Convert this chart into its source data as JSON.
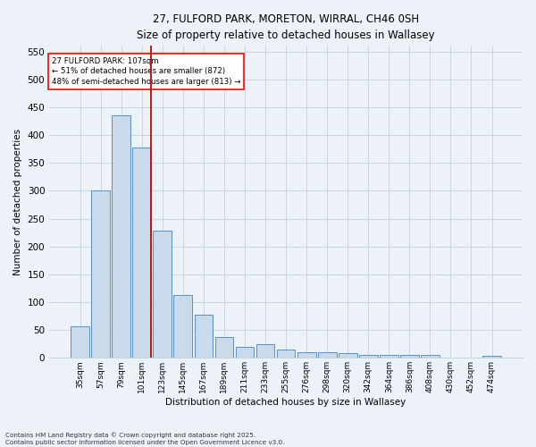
{
  "title_line1": "27, FULFORD PARK, MORETON, WIRRAL, CH46 0SH",
  "title_line2": "Size of property relative to detached houses in Wallasey",
  "xlabel": "Distribution of detached houses by size in Wallasey",
  "ylabel": "Number of detached properties",
  "footnote": "Contains HM Land Registry data © Crown copyright and database right 2025.\nContains public sector information licensed under the Open Government Licence v3.0.",
  "categories": [
    "35sqm",
    "57sqm",
    "79sqm",
    "101sqm",
    "123sqm",
    "145sqm",
    "167sqm",
    "189sqm",
    "211sqm",
    "233sqm",
    "255sqm",
    "276sqm",
    "298sqm",
    "320sqm",
    "342sqm",
    "364sqm",
    "386sqm",
    "408sqm",
    "430sqm",
    "452sqm",
    "474sqm"
  ],
  "values": [
    57,
    300,
    435,
    378,
    228,
    113,
    77,
    37,
    20,
    25,
    15,
    10,
    10,
    8,
    5,
    5,
    5,
    5,
    0,
    0,
    3
  ],
  "bar_color": "#c9daea",
  "bar_edge_color": "#5a8fc0",
  "grid_color": "#c8d4e4",
  "background_color": "#edf2f9",
  "vline_color": "#cc0000",
  "annotation_box_text": "27 FULFORD PARK: 107sqm\n← 51% of detached houses are smaller (872)\n48% of semi-detached houses are larger (813) →",
  "ylim": [
    0,
    560
  ],
  "yticks": [
    0,
    50,
    100,
    150,
    200,
    250,
    300,
    350,
    400,
    450,
    500,
    550
  ],
  "figsize": [
    6.0,
    5.0
  ],
  "dpi": 100
}
